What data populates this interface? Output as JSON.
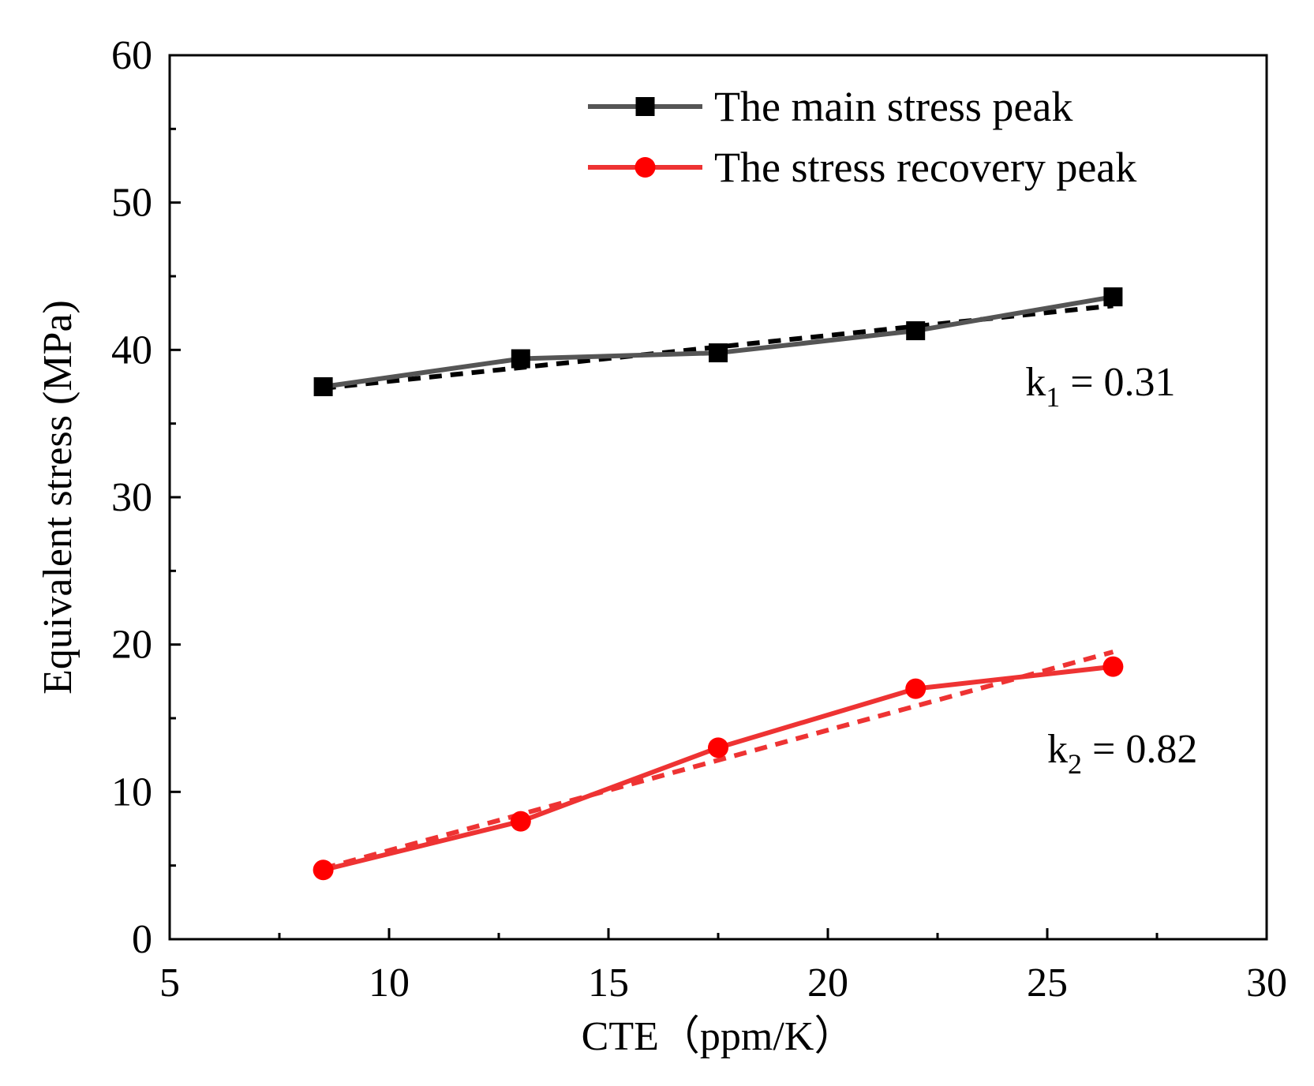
{
  "chart_data": {
    "type": "line",
    "title": "",
    "xlabel": "CTE（ppm/K）",
    "ylabel": "Equivalent stress (MPa)",
    "xlim": [
      5,
      30
    ],
    "ylim": [
      0,
      60
    ],
    "xticks": [
      5,
      10,
      15,
      20,
      25,
      30
    ],
    "yticks": [
      0,
      10,
      20,
      30,
      40,
      50,
      60
    ],
    "x_minor_step": 2.5,
    "y_minor_step": 5,
    "grid": false,
    "legend_position": "top-right",
    "x": [
      8.5,
      13,
      17.5,
      22,
      26.5
    ],
    "series": [
      {
        "name": "The main stress peak",
        "marker": "square",
        "color": "#555555",
        "marker_color": "#000000",
        "values": [
          37.5,
          39.4,
          39.8,
          41.3,
          43.6
        ],
        "fit": {
          "color": "#000000",
          "start": [
            8.5,
            37.4
          ],
          "end": [
            26.5,
            43.0
          ]
        },
        "annotation": {
          "base": "k",
          "sub": "1",
          "rest": " = 0.31",
          "x": 24.5,
          "y": 36.9
        }
      },
      {
        "name": "The stress recovery peak",
        "marker": "circle",
        "color": "#ee3333",
        "marker_color": "#ff0000",
        "values": [
          4.7,
          8.0,
          13.0,
          17.0,
          18.5
        ],
        "fit": {
          "color": "#ee3333",
          "start": [
            8.5,
            4.8
          ],
          "end": [
            26.5,
            19.5
          ]
        },
        "annotation": {
          "base": "k",
          "sub": "2",
          "rest": " = 0.82",
          "x": 25.0,
          "y": 12.0
        }
      }
    ]
  }
}
